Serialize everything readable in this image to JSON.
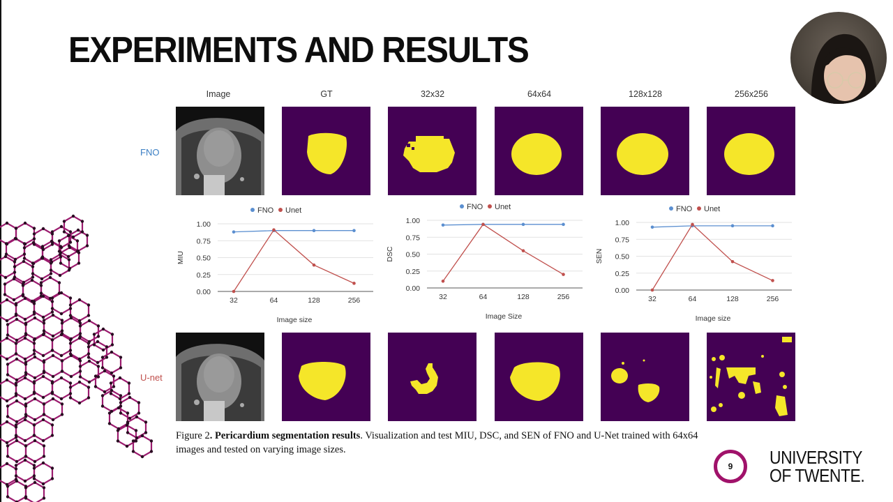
{
  "slide": {
    "title": "EXPERIMENTS AND RESULTS",
    "page_number": "9",
    "logo_line1": "UNIVERSITY",
    "logo_line2": "OF TWENTE.",
    "accent_color": "#a0126a"
  },
  "figure": {
    "column_headers": [
      "Image",
      "GT",
      "32x32",
      "64x64",
      "128x128",
      "256x256"
    ],
    "row_labels": {
      "fno": "FNO",
      "unet": "U-net"
    },
    "row_label_colors": {
      "fno": "#3b7fc4",
      "unet": "#c0504d"
    },
    "caption": {
      "prefix": "Figure 2",
      "bold": ". Pericardium segmentation results",
      "rest": ". Visualization and test MIU, DSC, and SEN of FNO and U-Net trained with 64x64 images and tested on varying image sizes."
    },
    "mask_colors": {
      "background": "#440154",
      "foreground": "#f5e629"
    }
  },
  "chart_data": [
    {
      "type": "line",
      "title": "",
      "xlabel": "Image size",
      "ylabel": "MIU",
      "categories": [
        "32",
        "64",
        "128",
        "256"
      ],
      "yticks": [
        "0.00",
        "0.25",
        "0.50",
        "0.75",
        "1.00"
      ],
      "ylim": [
        0,
        1
      ],
      "legend": [
        "FNO",
        "Unet"
      ],
      "legend_position": "top",
      "grid": true,
      "series": [
        {
          "name": "FNO",
          "color": "#5b8fd0",
          "values": [
            0.88,
            0.9,
            0.9,
            0.9
          ]
        },
        {
          "name": "Unet",
          "color": "#c0504d",
          "values": [
            0.0,
            0.91,
            0.39,
            0.12
          ]
        }
      ]
    },
    {
      "type": "line",
      "title": "",
      "xlabel": "Image Size",
      "ylabel": "DSC",
      "categories": [
        "32",
        "64",
        "128",
        "256"
      ],
      "yticks": [
        "0.00",
        "0.25",
        "0.50",
        "0.75",
        "1.00"
      ],
      "ylim": [
        0,
        1
      ],
      "legend": [
        "FNO",
        "Unet"
      ],
      "legend_position": "top",
      "grid": true,
      "series": [
        {
          "name": "FNO",
          "color": "#5b8fd0",
          "values": [
            0.93,
            0.94,
            0.94,
            0.94
          ]
        },
        {
          "name": "Unet",
          "color": "#c0504d",
          "values": [
            0.1,
            0.94,
            0.55,
            0.2
          ]
        }
      ]
    },
    {
      "type": "line",
      "title": "",
      "xlabel": "Image size",
      "ylabel": "SEN",
      "categories": [
        "32",
        "64",
        "128",
        "256"
      ],
      "yticks": [
        "0.00",
        "0.25",
        "0.50",
        "0.75",
        "1.00"
      ],
      "ylim": [
        0,
        1
      ],
      "legend": [
        "FNO",
        "Unet"
      ],
      "legend_position": "top",
      "grid": true,
      "series": [
        {
          "name": "FNO",
          "color": "#5b8fd0",
          "values": [
            0.93,
            0.95,
            0.95,
            0.95
          ]
        },
        {
          "name": "Unet",
          "color": "#c0504d",
          "values": [
            0.0,
            0.97,
            0.42,
            0.14
          ]
        }
      ]
    }
  ]
}
